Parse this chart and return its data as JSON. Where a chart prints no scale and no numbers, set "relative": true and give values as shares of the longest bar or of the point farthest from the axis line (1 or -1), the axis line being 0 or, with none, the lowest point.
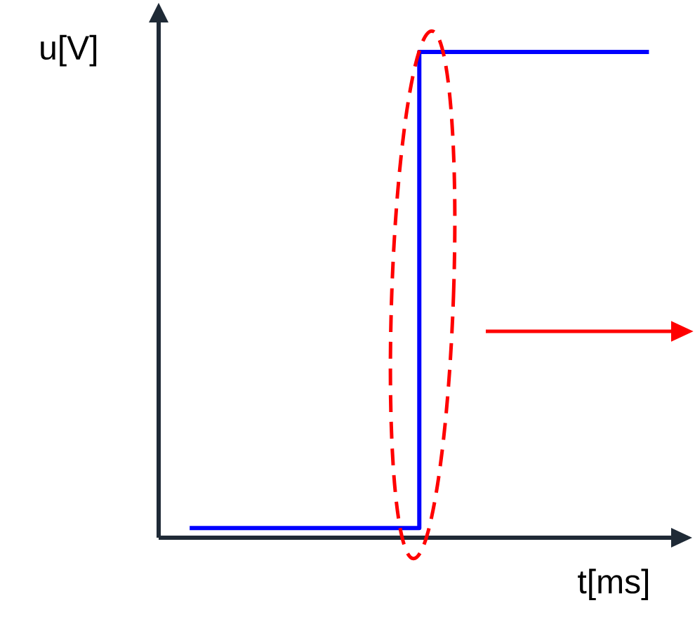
{
  "chart_data": {
    "type": "step",
    "xlabel": "t[ms]",
    "ylabel": "u[V]",
    "categories": [
      null,
      null,
      null
    ],
    "values": [
      0.02,
      1,
      1
    ],
    "color": "#0000ff",
    "relative": true
  }
}
